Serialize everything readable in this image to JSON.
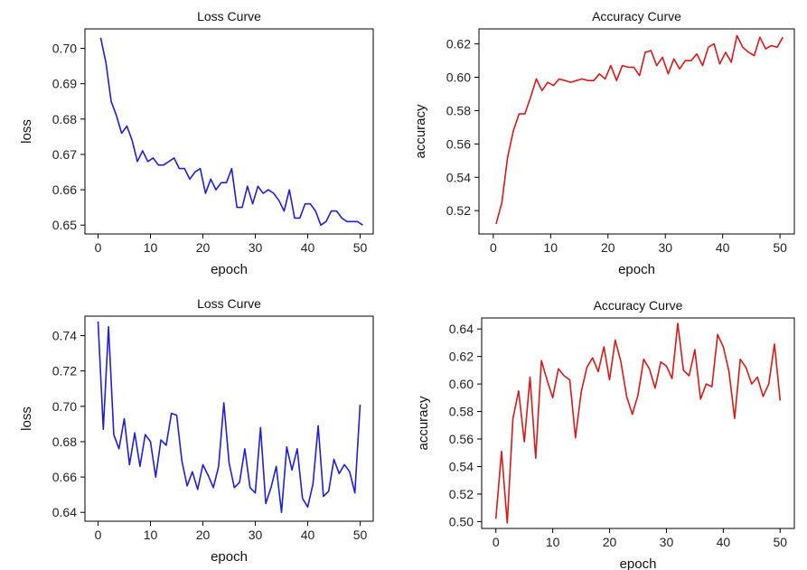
{
  "chart_data": [
    {
      "type": "line",
      "title": "Loss Curve",
      "xlabel": "epoch",
      "ylabel": "loss",
      "xlim": [
        -2.5,
        52.5
      ],
      "ylim": [
        0.6475,
        0.7055
      ],
      "xticks": [
        0,
        10,
        20,
        30,
        40,
        50
      ],
      "yticks": [
        0.65,
        0.66,
        0.67,
        0.68,
        0.69,
        0.7
      ],
      "ytick_labels": [
        "0.65",
        "0.66",
        "0.67",
        "0.68",
        "0.69",
        "0.70"
      ],
      "grid": false,
      "color": "#1f1fd6",
      "x": [
        0.5,
        1.5,
        2.5,
        3.5,
        4.5,
        5.5,
        6.5,
        7.5,
        8.5,
        9.5,
        10.5,
        11.5,
        12.5,
        13.5,
        14.5,
        15.5,
        16.5,
        17.5,
        18.5,
        19.5,
        20.5,
        21.5,
        22.5,
        23.5,
        24.5,
        25.5,
        26.5,
        27.5,
        28.5,
        29.5,
        30.5,
        31.5,
        32.5,
        33.5,
        34.5,
        35.5,
        36.5,
        37.5,
        38.5,
        39.5,
        40.5,
        41.5,
        42.5,
        43.5,
        44.5,
        45.5,
        46.5,
        47.5,
        48.5,
        49.5,
        50.5
      ],
      "values": [
        0.703,
        0.696,
        0.685,
        0.681,
        0.676,
        0.678,
        0.674,
        0.668,
        0.671,
        0.668,
        0.669,
        0.667,
        0.667,
        0.668,
        0.669,
        0.666,
        0.666,
        0.663,
        0.665,
        0.666,
        0.659,
        0.663,
        0.66,
        0.662,
        0.662,
        0.666,
        0.655,
        0.655,
        0.661,
        0.656,
        0.661,
        0.659,
        0.66,
        0.659,
        0.657,
        0.654,
        0.66,
        0.652,
        0.652,
        0.656,
        0.656,
        0.654,
        0.65,
        0.651,
        0.654,
        0.654,
        0.652,
        0.651,
        0.651,
        0.651,
        0.65
      ]
    },
    {
      "type": "line",
      "title": "Accuracy Curve",
      "xlabel": "epoch",
      "ylabel": "accuracy",
      "xlim": [
        -2.5,
        52.5
      ],
      "ylim": [
        0.506,
        0.629
      ],
      "xticks": [
        0,
        10,
        20,
        30,
        40,
        50
      ],
      "yticks": [
        0.52,
        0.54,
        0.56,
        0.58,
        0.6,
        0.62
      ],
      "ytick_labels": [
        "0.52",
        "0.54",
        "0.56",
        "0.58",
        "0.60",
        "0.62"
      ],
      "grid": false,
      "color": "#d61a1a",
      "x": [
        0.5,
        1.5,
        2.5,
        3.5,
        4.5,
        5.5,
        6.5,
        7.5,
        8.5,
        9.5,
        10.5,
        11.5,
        12.5,
        13.5,
        14.5,
        15.5,
        16.5,
        17.5,
        18.5,
        19.5,
        20.5,
        21.5,
        22.5,
        23.5,
        24.5,
        25.5,
        26.5,
        27.5,
        28.5,
        29.5,
        30.5,
        31.5,
        32.5,
        33.5,
        34.5,
        35.5,
        36.5,
        37.5,
        38.5,
        39.5,
        40.5,
        41.5,
        42.5,
        43.5,
        44.5,
        45.5,
        46.5,
        47.5,
        48.5,
        49.5,
        50.5
      ],
      "values": [
        0.512,
        0.525,
        0.552,
        0.568,
        0.578,
        0.578,
        0.588,
        0.599,
        0.592,
        0.597,
        0.595,
        0.599,
        0.598,
        0.597,
        0.598,
        0.599,
        0.598,
        0.598,
        0.602,
        0.599,
        0.607,
        0.598,
        0.607,
        0.606,
        0.606,
        0.601,
        0.615,
        0.616,
        0.607,
        0.612,
        0.602,
        0.611,
        0.605,
        0.61,
        0.61,
        0.614,
        0.607,
        0.618,
        0.62,
        0.608,
        0.615,
        0.609,
        0.625,
        0.618,
        0.615,
        0.613,
        0.624,
        0.617,
        0.619,
        0.618,
        0.624
      ]
    },
    {
      "type": "line",
      "title": "Loss Curve",
      "xlabel": "epoch",
      "ylabel": "loss",
      "xlim": [
        -2.5,
        52.5
      ],
      "ylim": [
        0.635,
        0.751
      ],
      "xticks": [
        0,
        10,
        20,
        30,
        40,
        50
      ],
      "yticks": [
        0.64,
        0.66,
        0.68,
        0.7,
        0.72,
        0.74
      ],
      "ytick_labels": [
        "0.64",
        "0.66",
        "0.68",
        "0.70",
        "0.72",
        "0.74"
      ],
      "grid": false,
      "color": "#1f1fd6",
      "x": [
        0,
        1,
        2,
        3,
        4,
        5,
        6,
        7,
        8,
        9,
        10,
        11,
        12,
        13,
        14,
        15,
        16,
        17,
        18,
        19,
        20,
        21,
        22,
        23,
        24,
        25,
        26,
        27,
        28,
        29,
        30,
        31,
        32,
        33,
        34,
        35,
        36,
        37,
        38,
        39,
        40,
        41,
        42,
        43,
        44,
        45,
        46,
        47,
        48,
        49,
        50
      ],
      "values": [
        0.748,
        0.687,
        0.745,
        0.684,
        0.676,
        0.693,
        0.667,
        0.685,
        0.666,
        0.684,
        0.68,
        0.66,
        0.681,
        0.678,
        0.696,
        0.695,
        0.669,
        0.655,
        0.663,
        0.653,
        0.667,
        0.661,
        0.654,
        0.666,
        0.702,
        0.668,
        0.654,
        0.657,
        0.676,
        0.654,
        0.651,
        0.688,
        0.645,
        0.654,
        0.666,
        0.64,
        0.677,
        0.664,
        0.676,
        0.648,
        0.643,
        0.656,
        0.689,
        0.649,
        0.652,
        0.67,
        0.662,
        0.667,
        0.663,
        0.651,
        0.701
      ]
    },
    {
      "type": "line",
      "title": "Accuracy Curve",
      "xlabel": "epoch",
      "ylabel": "accuracy",
      "xlim": [
        -2.5,
        52.5
      ],
      "ylim": [
        0.495,
        0.648
      ],
      "xticks": [
        0,
        10,
        20,
        30,
        40,
        50
      ],
      "yticks": [
        0.5,
        0.52,
        0.54,
        0.56,
        0.58,
        0.6,
        0.62,
        0.64
      ],
      "ytick_labels": [
        "0.50",
        "0.52",
        "0.54",
        "0.56",
        "0.58",
        "0.60",
        "0.62",
        "0.64"
      ],
      "grid": false,
      "color": "#d61a1a",
      "x": [
        0,
        1,
        2,
        3,
        4,
        5,
        6,
        7,
        8,
        9,
        10,
        11,
        12,
        13,
        14,
        15,
        16,
        17,
        18,
        19,
        20,
        21,
        22,
        23,
        24,
        25,
        26,
        27,
        28,
        29,
        30,
        31,
        32,
        33,
        34,
        35,
        36,
        37,
        38,
        39,
        40,
        41,
        42,
        43,
        44,
        45,
        46,
        47,
        48,
        49,
        50
      ],
      "values": [
        0.502,
        0.551,
        0.499,
        0.575,
        0.595,
        0.558,
        0.605,
        0.546,
        0.617,
        0.603,
        0.59,
        0.611,
        0.606,
        0.603,
        0.561,
        0.594,
        0.612,
        0.619,
        0.609,
        0.627,
        0.603,
        0.632,
        0.616,
        0.591,
        0.578,
        0.592,
        0.618,
        0.611,
        0.597,
        0.616,
        0.613,
        0.604,
        0.644,
        0.61,
        0.606,
        0.625,
        0.589,
        0.6,
        0.598,
        0.636,
        0.627,
        0.609,
        0.575,
        0.618,
        0.612,
        0.6,
        0.605,
        0.591,
        0.6,
        0.629,
        0.588
      ]
    }
  ]
}
